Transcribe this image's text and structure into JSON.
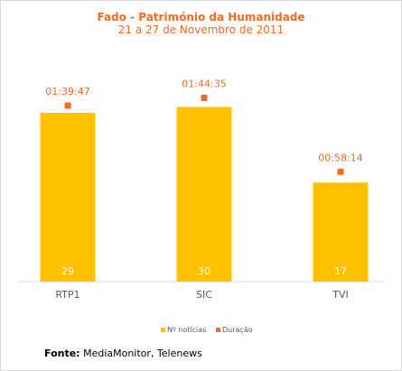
{
  "chart_data": {
    "type": "bar",
    "title": "Fado - Património da Humanidade",
    "subtitle": "21 a 27 de Novembro de 2011",
    "categories": [
      "RTP1",
      "SIC",
      "TVI"
    ],
    "series": [
      {
        "name": "Nº notícias",
        "values": [
          29,
          30,
          17
        ],
        "kind": "bar"
      },
      {
        "name": "Duração",
        "values": [
          "01:39:47",
          "01:44:35",
          "00:58:14"
        ],
        "kind": "point"
      }
    ],
    "legend_position": "bottom-center",
    "grid": false
  },
  "colors": {
    "bar": "#ffc000",
    "point": "#f26b21",
    "title": "#f26b21",
    "text": "#595959"
  },
  "source": {
    "label": "Fonte:",
    "text": " MediaMonitor, Telenews"
  }
}
